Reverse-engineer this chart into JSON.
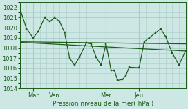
{
  "title": "Pression niveau de la mer( hPa )",
  "bg_color": "#cde8e4",
  "grid_color": "#aaccc8",
  "line_color": "#1a5c1a",
  "ylim": [
    1014,
    1022.5
  ],
  "yticks": [
    1014,
    1015,
    1016,
    1017,
    1018,
    1019,
    1020,
    1021,
    1022
  ],
  "xtick_labels": [
    "Mar",
    "Ven",
    "Mer",
    "Jeu"
  ],
  "xtick_positions": [
    8,
    21,
    52,
    72
  ],
  "xlim": [
    0,
    100
  ],
  "series1_x": [
    0,
    4,
    8,
    11,
    15,
    18,
    21,
    24,
    27,
    30,
    33,
    36,
    40,
    43,
    46,
    49,
    52,
    55,
    57,
    59,
    62,
    64,
    66,
    72,
    75,
    78,
    82,
    85,
    88,
    92,
    96,
    100
  ],
  "series1_y": [
    1021.9,
    1019.9,
    1019.0,
    1019.6,
    1021.0,
    1020.6,
    1021.0,
    1020.6,
    1019.5,
    1017.0,
    1016.3,
    1017.1,
    1018.5,
    1018.4,
    1017.1,
    1016.3,
    1018.4,
    1015.8,
    1015.8,
    1014.8,
    1014.9,
    1015.3,
    1016.1,
    1016.05,
    1018.6,
    1019.0,
    1019.5,
    1019.9,
    1019.1,
    1017.5,
    1016.3,
    1017.7
  ],
  "series2_x": [
    0,
    100
  ],
  "series2_y": [
    1018.6,
    1018.4
  ],
  "series3_x": [
    0,
    100
  ],
  "series3_y": [
    1018.55,
    1017.7
  ],
  "vlines_x": [
    8,
    21,
    52,
    72
  ]
}
